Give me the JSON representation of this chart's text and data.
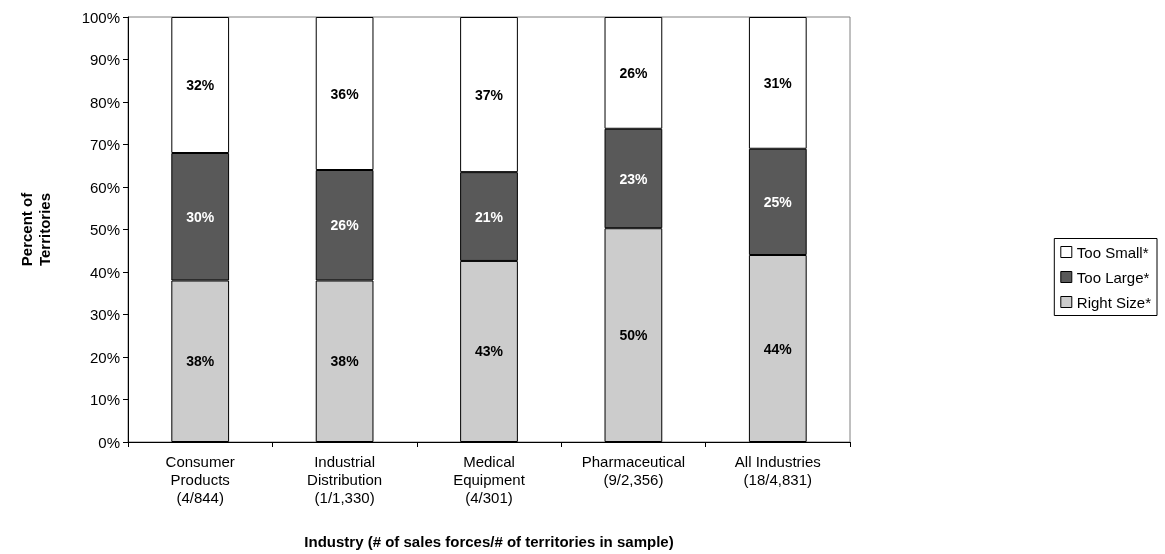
{
  "chart_data": {
    "type": "bar",
    "stacked": true,
    "categories": [
      "Consumer\nProducts\n(4/844)",
      "Industrial\nDistribution\n(1/1,330)",
      "Medical\nEquipment\n(4/301)",
      "Pharmaceutical\n(9/2,356)",
      "All Industries\n(18/4,831)"
    ],
    "series": [
      {
        "name": "Right Size*",
        "color": "#cccccc",
        "values": [
          38,
          38,
          42.6,
          50.3,
          44
        ],
        "value_labels": [
          "38%",
          "38%",
          "43%",
          "50%",
          "44%"
        ]
      },
      {
        "name": "Too Large*",
        "color": "#595959",
        "values": [
          30,
          26,
          20.9,
          23.4,
          25
        ],
        "value_labels": [
          "30%",
          "26%",
          "21%",
          "23%",
          "25%"
        ]
      },
      {
        "name": "Too Small*",
        "color": "#ffffff",
        "values": [
          32,
          36,
          36.5,
          26.3,
          31
        ],
        "value_labels": [
          "32%",
          "36%",
          "37%",
          "26%",
          "31%"
        ]
      }
    ],
    "ylabel": "Percent of\nTerritories",
    "xlabel": "Industry (# of sales forces/# of territories in sample)",
    "ylim": [
      0,
      100
    ],
    "yticks": [
      {
        "value": 0,
        "label": "0%"
      },
      {
        "value": 10,
        "label": "10%"
      },
      {
        "value": 20,
        "label": "20%"
      },
      {
        "value": 30,
        "label": "30%"
      },
      {
        "value": 40,
        "label": "40%"
      },
      {
        "value": 50,
        "label": "50%"
      },
      {
        "value": 60,
        "label": "60%"
      },
      {
        "value": 70,
        "label": "70%"
      },
      {
        "value": 80,
        "label": "80%"
      },
      {
        "value": 90,
        "label": "90%"
      },
      {
        "value": 100,
        "label": "100%"
      }
    ],
    "grid": false,
    "legend": "right"
  }
}
